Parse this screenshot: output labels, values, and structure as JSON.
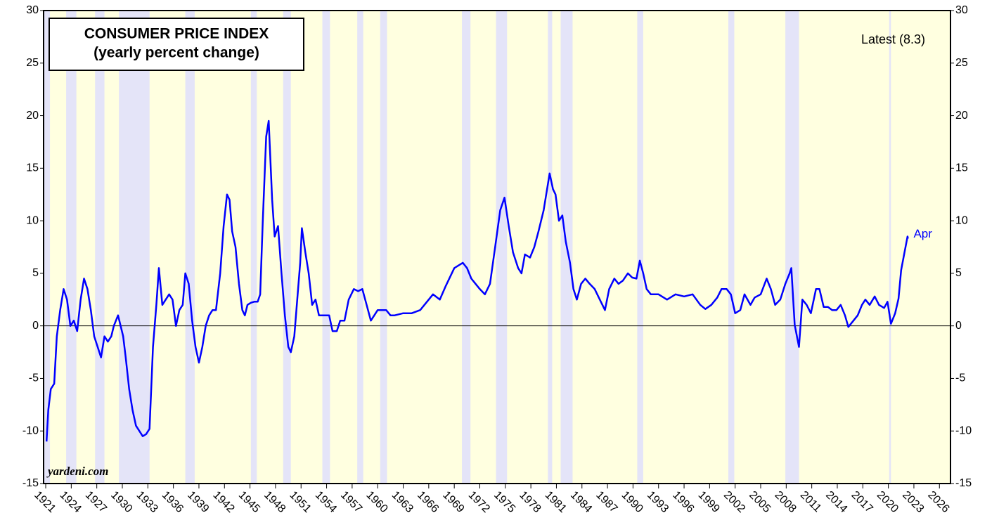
{
  "chart_data": {
    "type": "line",
    "title": "CONSUMER PRICE INDEX",
    "subtitle": "(yearly percent change)",
    "annotations": {
      "latest": "Latest (8.3)",
      "end_label": "Apr",
      "source": "yardeni.com"
    },
    "xlim": [
      1920.75,
      2027.3
    ],
    "xticks": [
      1921,
      1924,
      1927,
      1930,
      1933,
      1936,
      1939,
      1942,
      1945,
      1948,
      1951,
      1954,
      1957,
      1960,
      1963,
      1966,
      1969,
      1972,
      1975,
      1978,
      1981,
      1984,
      1987,
      1990,
      1993,
      1996,
      1999,
      2002,
      2005,
      2008,
      2011,
      2014,
      2017,
      2020,
      2023,
      2026
    ],
    "ylim": [
      -15,
      30
    ],
    "yticks": [
      -15,
      -10,
      -5,
      0,
      5,
      10,
      15,
      20,
      25,
      30
    ],
    "background_color": "#ffffe0",
    "recession_color": "#e4e4f8",
    "recessions": [
      [
        1920.75,
        1921.5
      ],
      [
        1923.4,
        1924.6
      ],
      [
        1926.8,
        1927.9
      ],
      [
        1929.6,
        1933.2
      ],
      [
        1937.4,
        1938.5
      ],
      [
        1945.1,
        1945.8
      ],
      [
        1948.9,
        1949.8
      ],
      [
        1953.5,
        1954.4
      ],
      [
        1957.6,
        1958.3
      ],
      [
        1960.3,
        1961.1
      ],
      [
        1969.9,
        1970.9
      ],
      [
        1973.9,
        1975.2
      ],
      [
        1980.0,
        1980.5
      ],
      [
        1981.5,
        1982.9
      ],
      [
        1990.5,
        1991.2
      ],
      [
        2001.2,
        2001.9
      ],
      [
        2007.9,
        2009.5
      ],
      [
        2020.1,
        2020.3
      ]
    ],
    "series": [
      {
        "name": "CPI",
        "color": "#0000ff",
        "x": [
          1921.1,
          1921.3,
          1921.6,
          1922.0,
          1922.3,
          1922.7,
          1923.1,
          1923.5,
          1923.9,
          1924.3,
          1924.7,
          1925.1,
          1925.5,
          1925.9,
          1926.3,
          1926.7,
          1927.1,
          1927.5,
          1927.9,
          1928.3,
          1928.7,
          1929.0,
          1929.5,
          1929.8,
          1930.1,
          1930.4,
          1930.8,
          1931.2,
          1931.6,
          1932.0,
          1932.4,
          1932.8,
          1933.2,
          1933.6,
          1934.0,
          1934.3,
          1934.7,
          1935.1,
          1935.5,
          1935.9,
          1936.3,
          1936.7,
          1937.1,
          1937.4,
          1937.8,
          1938.2,
          1938.6,
          1939.0,
          1939.4,
          1939.8,
          1940.2,
          1940.6,
          1941.0,
          1941.5,
          1941.9,
          1942.3,
          1942.6,
          1942.9,
          1943.3,
          1943.7,
          1944.1,
          1944.4,
          1944.7,
          1945.1,
          1945.5,
          1945.9,
          1946.2,
          1946.5,
          1946.9,
          1947.2,
          1947.6,
          1947.9,
          1948.3,
          1948.7,
          1949.1,
          1949.5,
          1949.8,
          1950.2,
          1950.5,
          1950.9,
          1951.1,
          1951.5,
          1951.9,
          1952.3,
          1952.7,
          1953.1,
          1953.5,
          1953.9,
          1954.3,
          1954.7,
          1955.2,
          1955.6,
          1956.1,
          1956.6,
          1957.2,
          1957.7,
          1958.2,
          1958.7,
          1959.2,
          1959.6,
          1960.0,
          1960.5,
          1961.0,
          1961.5,
          1962.0,
          1963.0,
          1964.0,
          1965.0,
          1966.5,
          1967.3,
          1968.0,
          1969.0,
          1970.0,
          1970.5,
          1971.0,
          1971.5,
          1972.0,
          1972.6,
          1973.2,
          1973.8,
          1974.4,
          1974.9,
          1975.4,
          1975.9,
          1976.5,
          1976.9,
          1977.3,
          1977.9,
          1978.4,
          1978.9,
          1979.5,
          1980.2,
          1980.6,
          1980.9,
          1981.3,
          1981.7,
          1982.1,
          1982.6,
          1983.0,
          1983.4,
          1983.9,
          1984.4,
          1984.9,
          1985.5,
          1986.1,
          1986.7,
          1987.2,
          1987.8,
          1988.3,
          1988.8,
          1989.4,
          1989.9,
          1990.4,
          1990.8,
          1991.2,
          1991.6,
          1992.1,
          1993.0,
          1994.0,
          1995.0,
          1996.0,
          1997.0,
          1997.9,
          1998.5,
          1999.2,
          1999.9,
          2000.4,
          2001.0,
          2001.5,
          2002.0,
          2002.6,
          2003.1,
          2003.8,
          2004.3,
          2005.0,
          2005.7,
          2006.2,
          2006.7,
          2007.3,
          2007.9,
          2008.4,
          2008.6,
          2009.0,
          2009.5,
          2009.9,
          2010.4,
          2010.9,
          2011.5,
          2011.9,
          2012.4,
          2012.9,
          2013.4,
          2013.9,
          2014.4,
          2014.9,
          2015.3,
          2015.9,
          2016.4,
          2016.9,
          2017.3,
          2017.8,
          2018.4,
          2018.9,
          2019.5,
          2019.9,
          2020.3,
          2020.8,
          2021.2,
          2021.5,
          2021.9,
          2022.25,
          2022.3
        ],
        "values": [
          -11,
          -8,
          -6,
          -5.5,
          -1,
          1.5,
          3.5,
          2.5,
          0,
          0.5,
          -0.5,
          2.5,
          4.5,
          3.5,
          1.5,
          -1,
          -2,
          -3,
          -1,
          -1.5,
          -1,
          0,
          1,
          0,
          -1,
          -3,
          -6,
          -8,
          -9.5,
          -10,
          -10.5,
          -10.3,
          -9.8,
          -2,
          2,
          5.5,
          2,
          2.5,
          3,
          2.5,
          0,
          1.5,
          2,
          5,
          4,
          0.5,
          -2,
          -3.5,
          -2,
          0,
          1,
          1.5,
          1.5,
          5,
          9.5,
          12.5,
          12,
          9,
          7.5,
          4,
          1.5,
          1,
          2,
          2.2,
          2.3,
          2.3,
          3,
          10,
          18,
          19.5,
          12,
          8.5,
          9.5,
          5,
          1,
          -2,
          -2.5,
          -1,
          2,
          6,
          9.3,
          7,
          5,
          2,
          2.5,
          1,
          1,
          1,
          1,
          -0.5,
          -0.5,
          0.5,
          0.5,
          2.5,
          3.5,
          3.3,
          3.5,
          2,
          0.5,
          1,
          1.5,
          1.5,
          1.5,
          1,
          1,
          1.2,
          1.2,
          1.5,
          3,
          2.5,
          3.8,
          5.5,
          6,
          5.5,
          4.5,
          4,
          3.5,
          3,
          4,
          7.5,
          11,
          12.2,
          9.5,
          7,
          5.5,
          5,
          6.8,
          6.5,
          7.5,
          9,
          11,
          14.5,
          13,
          12.5,
          10,
          10.5,
          8,
          6,
          3.5,
          2.5,
          4,
          4.5,
          4,
          3.5,
          2.5,
          1.5,
          3.5,
          4.5,
          4,
          4.3,
          5,
          4.6,
          4.5,
          6.2,
          5,
          3.5,
          3,
          3,
          2.5,
          3,
          2.8,
          3,
          2,
          1.6,
          2,
          2.7,
          3.5,
          3.5,
          3,
          1.2,
          1.5,
          3,
          2,
          2.7,
          3,
          4.5,
          3.5,
          2,
          2.5,
          4,
          5,
          5.5,
          0.1,
          -2,
          2.5,
          2,
          1.2,
          3.5,
          3.5,
          1.8,
          1.8,
          1.5,
          1.5,
          2,
          1,
          -0.1,
          0.5,
          1,
          2,
          2.5,
          2,
          2.8,
          2,
          1.7,
          2.3,
          0.2,
          1.2,
          2.6,
          5.3,
          7,
          8.5,
          8.3
        ]
      }
    ]
  }
}
